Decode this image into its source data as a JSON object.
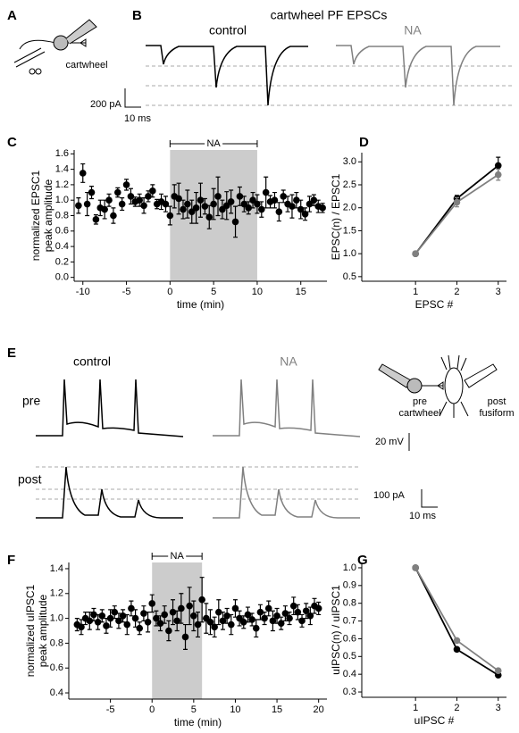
{
  "labels": {
    "panel_a": "A",
    "panel_b": "B",
    "panel_c": "C",
    "panel_d": "D",
    "panel_e": "E",
    "panel_f": "F",
    "panel_g": "G",
    "b_title": "cartwheel PF EPSCs",
    "b_control": "control",
    "b_na": "NA",
    "a_cell": "cartwheel",
    "b_scale_y": "200 pA",
    "b_scale_x": "10 ms",
    "e_control": "control",
    "e_na": "NA",
    "e_pre": "pre",
    "e_post": "post",
    "e_pre_cell": [
      "pre",
      "cartwheel"
    ],
    "e_post_cell": [
      "post",
      "fusiform"
    ],
    "e_scale_v": "20 mV",
    "e_scale_i": "100 pA",
    "e_scale_x": "10 ms"
  },
  "chart_data": [
    {
      "type": "scatter",
      "xlabel": "time (min)",
      "ylabel": [
        "normalized EPSC1",
        "peak amplitude"
      ],
      "xlim": [
        -11,
        18
      ],
      "ylim": [
        -0.05,
        1.65
      ],
      "xticks": [
        -10,
        -5,
        0,
        5,
        10,
        15
      ],
      "yticks": [
        {
          "value": 0,
          "label": "0.0"
        },
        0.2,
        0.4,
        0.6,
        0.8,
        {
          "value": 1,
          "label": "1.0"
        },
        1.2,
        1.4,
        1.6
      ],
      "shade": {
        "label": "NA",
        "start": 0,
        "end": 10
      },
      "color": "#000000",
      "x": [
        -10.5,
        -10,
        -9.5,
        -9,
        -8.5,
        -8,
        -7.5,
        -7,
        -6.5,
        -6,
        -5.5,
        -5,
        -4.5,
        -4,
        -3.5,
        -3,
        -2.5,
        -2,
        -1.5,
        -1,
        -0.5,
        0,
        0.5,
        1,
        1.5,
        2,
        2.5,
        3,
        3.5,
        4,
        4.5,
        5,
        5.5,
        6,
        6.5,
        7,
        7.5,
        8,
        8.5,
        9,
        9.5,
        10,
        10.5,
        11,
        11.5,
        12,
        12.5,
        13,
        13.5,
        14,
        14.5,
        15,
        15.5,
        16,
        16.5,
        17,
        17.5
      ],
      "values": [
        0.93,
        1.35,
        0.95,
        1.1,
        0.75,
        0.9,
        0.88,
        1.0,
        0.8,
        1.1,
        0.95,
        1.2,
        1.05,
        0.98,
        1.0,
        0.93,
        1.05,
        1.12,
        0.95,
        0.98,
        0.95,
        0.8,
        1.05,
        1.02,
        0.88,
        0.95,
        0.85,
        0.9,
        1.0,
        0.92,
        0.78,
        0.95,
        1.05,
        0.88,
        0.93,
        0.98,
        0.72,
        1.05,
        0.95,
        0.9,
        1.0,
        0.95,
        0.88,
        1.1,
        0.98,
        1.0,
        0.85,
        1.05,
        0.95,
        0.92,
        1.0,
        0.88,
        0.82,
        0.95,
        1.0,
        0.92,
        0.9
      ],
      "errors": [
        0.1,
        0.12,
        0.15,
        0.08,
        0.06,
        0.1,
        0.12,
        0.08,
        0.1,
        0.06,
        0.08,
        0.07,
        0.1,
        0.06,
        0.08,
        0.1,
        0.07,
        0.08,
        0.06,
        0.1,
        0.1,
        0.12,
        0.15,
        0.2,
        0.12,
        0.18,
        0.15,
        0.2,
        0.22,
        0.1,
        0.15,
        0.2,
        0.25,
        0.12,
        0.18,
        0.15,
        0.2,
        0.12,
        0.1,
        0.08,
        0.1,
        0.12,
        0.1,
        0.2,
        0.08,
        0.1,
        0.12,
        0.08,
        0.1,
        0.15,
        0.1,
        0.12,
        0.08,
        0.1,
        0.07,
        0.08,
        0.06
      ]
    },
    {
      "type": "line",
      "xlabel": "EPSC #",
      "ylabel": [
        "EPSC(n) / EPSC1"
      ],
      "xlim": [
        -0.3,
        3.2
      ],
      "ylim": [
        0.4,
        3.2
      ],
      "xticks": [
        1,
        2,
        3
      ],
      "yticks": [
        0.5,
        {
          "value": 1,
          "label": "1.0"
        },
        1.5,
        {
          "value": 2,
          "label": "2.0"
        },
        2.5,
        {
          "value": 3,
          "label": "3.0"
        }
      ],
      "x": [
        1,
        2,
        3
      ],
      "series": [
        {
          "color": "#000000",
          "values": [
            1,
            2.2,
            2.92
          ],
          "errors": [
            0,
            0.07,
            0.18
          ]
        },
        {
          "color": "#808080",
          "values": [
            1,
            2.12,
            2.72
          ],
          "errors": [
            0,
            0.1,
            0.12
          ]
        }
      ]
    },
    {
      "type": "scatter",
      "xlabel": "time (min)",
      "ylabel": [
        "normalized uIPSC1",
        "peak amplitude"
      ],
      "xlim": [
        -10,
        21
      ],
      "ylim": [
        0.35,
        1.45
      ],
      "xticks": [
        -5,
        0,
        5,
        10,
        15,
        20
      ],
      "yticks": [
        0.4,
        0.6,
        0.8,
        {
          "value": 1,
          "label": "1.0"
        },
        1.2,
        1.4
      ],
      "shade": {
        "label": "NA",
        "start": 0,
        "end": 6
      },
      "color": "#000000",
      "x": [
        -9,
        -8.5,
        -8,
        -7.5,
        -7,
        -6.5,
        -6,
        -5.5,
        -5,
        -4.5,
        -4,
        -3.5,
        -3,
        -2.5,
        -2,
        -1.5,
        -1,
        -0.5,
        0,
        0.5,
        1,
        1.5,
        2,
        2.5,
        3,
        3.5,
        4,
        4.5,
        5,
        5.5,
        6,
        6.5,
        7,
        7.5,
        8,
        8.5,
        9,
        9.5,
        10,
        10.5,
        11,
        11.5,
        12,
        12.5,
        13,
        13.5,
        14,
        14.5,
        15,
        15.5,
        16,
        16.5,
        17,
        17.5,
        18,
        18.5,
        19,
        19.5,
        20
      ],
      "values": [
        0.95,
        0.93,
        1.0,
        0.98,
        1.03,
        0.97,
        1.02,
        0.94,
        1.0,
        1.05,
        0.98,
        1.02,
        0.95,
        1.08,
        1.0,
        0.92,
        1.04,
        0.97,
        1.12,
        1.0,
        0.96,
        1.03,
        0.9,
        1.05,
        0.98,
        1.08,
        0.85,
        1.1,
        1.02,
        0.95,
        1.15,
        1.0,
        0.97,
        0.93,
        1.05,
        0.98,
        1.02,
        0.95,
        1.08,
        1.0,
        0.97,
        1.03,
        0.99,
        0.92,
        1.05,
        1.0,
        1.08,
        0.98,
        1.02,
        0.96,
        1.04,
        1.0,
        1.1,
        1.05,
        0.98,
        1.06,
        1.02,
        1.1,
        1.08
      ],
      "errors": [
        0.05,
        0.06,
        0.05,
        0.07,
        0.05,
        0.06,
        0.05,
        0.06,
        0.07,
        0.05,
        0.06,
        0.05,
        0.08,
        0.06,
        0.07,
        0.05,
        0.06,
        0.08,
        0.07,
        0.06,
        0.06,
        0.07,
        0.08,
        0.1,
        0.08,
        0.12,
        0.1,
        0.15,
        0.12,
        0.1,
        0.18,
        0.12,
        0.1,
        0.08,
        0.1,
        0.07,
        0.06,
        0.08,
        0.07,
        0.06,
        0.05,
        0.06,
        0.05,
        0.07,
        0.06,
        0.05,
        0.06,
        0.08,
        0.06,
        0.05,
        0.06,
        0.05,
        0.07,
        0.06,
        0.05,
        0.06,
        0.07,
        0.06,
        0.05
      ]
    },
    {
      "type": "line",
      "xlabel": "uIPSC #",
      "ylabel": [
        "uIPSC(n) / uIPSC1"
      ],
      "xlim": [
        -0.3,
        3.2
      ],
      "ylim": [
        0.27,
        1.03
      ],
      "xticks": [
        1,
        2,
        3
      ],
      "yticks": [
        0.3,
        0.4,
        0.5,
        0.6,
        0.7,
        0.8,
        0.9,
        {
          "value": 1,
          "label": "1.0"
        }
      ],
      "x": [
        1,
        2,
        3
      ],
      "series": [
        {
          "color": "#000000",
          "values": [
            1,
            0.54,
            0.395
          ],
          "errors": [
            0,
            0.01,
            0.01
          ]
        },
        {
          "color": "#808080",
          "values": [
            1,
            0.59,
            0.42
          ],
          "errors": [
            0,
            0.01,
            0.01
          ]
        }
      ]
    }
  ]
}
